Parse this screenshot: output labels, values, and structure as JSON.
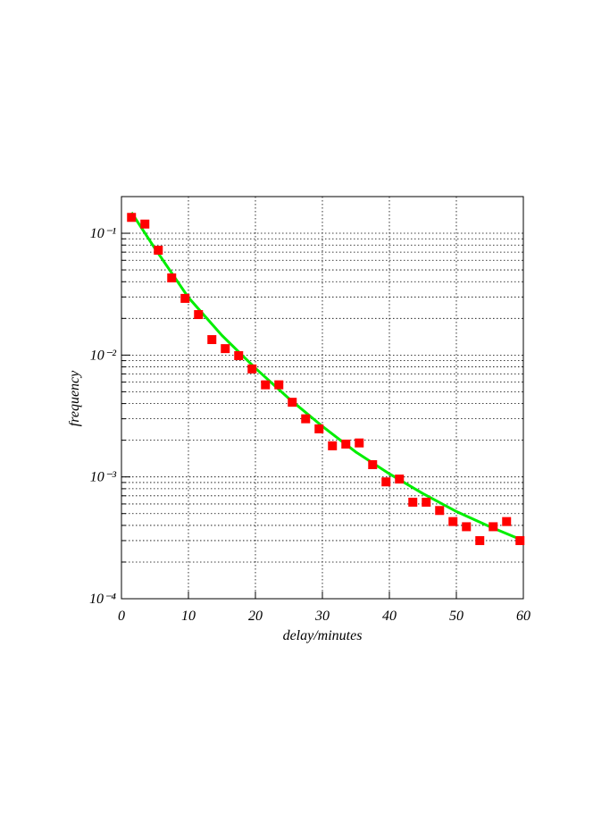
{
  "chart_data": {
    "type": "scatter",
    "log_y": true,
    "grid": true,
    "xlabel": "delay/minutes",
    "ylabel": "frequency",
    "xlim": [
      0,
      60
    ],
    "ylim": [
      0.0001,
      0.2
    ],
    "xticks": [
      0,
      10,
      20,
      30,
      40,
      50,
      60
    ],
    "yticks": [
      {
        "value": 0.0001,
        "label": "10⁻⁴"
      },
      {
        "value": 0.001,
        "label": "10⁻³"
      },
      {
        "value": 0.01,
        "label": "10⁻²"
      },
      {
        "value": 0.1,
        "label": "10⁻¹"
      }
    ],
    "minor_yticks": [
      0.0002,
      0.0003,
      0.0004,
      0.0005,
      0.0006,
      0.0007,
      0.0008,
      0.0009,
      0.002,
      0.003,
      0.004,
      0.005,
      0.006,
      0.007,
      0.008,
      0.009,
      0.02,
      0.03,
      0.04,
      0.05,
      0.06,
      0.07,
      0.08,
      0.09
    ],
    "points": {
      "color": "#ff0000",
      "x": [
        1.5,
        3.5,
        5.5,
        7.5,
        9.5,
        11.5,
        13.5,
        15.5,
        17.5,
        19.5,
        21.5,
        23.5,
        25.5,
        27.5,
        29.5,
        31.5,
        33.5,
        35.5,
        37.5,
        39.5,
        41.5,
        43.5,
        45.5,
        47.5,
        49.5,
        51.5,
        53.5,
        55.5,
        57.5,
        59.5
      ],
      "values": [
        0.135,
        0.119,
        0.0726,
        0.043,
        0.0292,
        0.0215,
        0.0134,
        0.0113,
        0.0099,
        0.0077,
        0.0057,
        0.0057,
        0.0041,
        0.003,
        0.00248,
        0.0018,
        0.00186,
        0.0019,
        0.00126,
        0.00091,
        0.00096,
        0.00062,
        0.00062,
        0.00053,
        0.00043,
        0.00039,
        0.0003,
        0.00039,
        0.00043,
        0.0003
      ]
    },
    "fit": {
      "color": "#00ee00",
      "x": [
        1.5,
        5,
        10,
        15,
        20,
        25,
        30,
        35,
        40,
        45,
        50,
        55,
        60
      ],
      "values": [
        0.148,
        0.075,
        0.0297,
        0.0145,
        0.0078,
        0.0044,
        0.0026,
        0.0016,
        0.00106,
        0.00073,
        0.00052,
        0.00039,
        0.0003
      ]
    }
  }
}
